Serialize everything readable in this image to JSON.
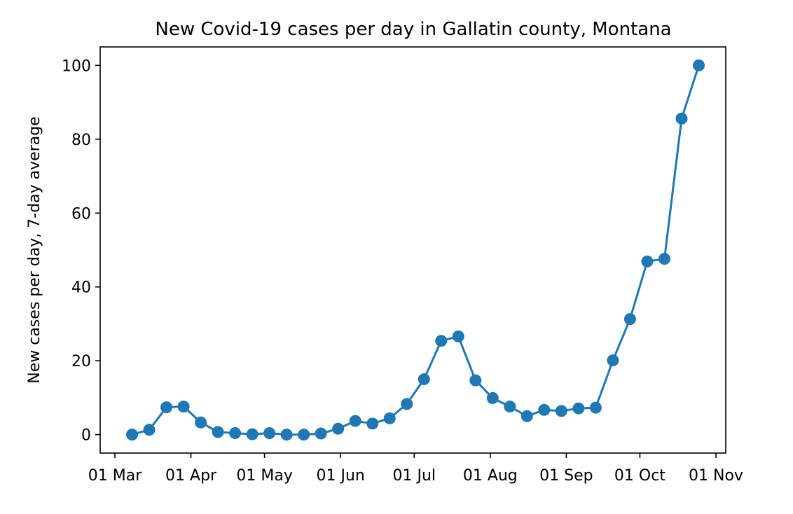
{
  "chart_data": {
    "type": "line",
    "title": "New Covid-19 cases per day in Gallatin county, Montana",
    "xlabel": "",
    "ylabel": "New cases per day, 7-day average",
    "x_ticks": [
      {
        "date": "2020-03-01",
        "label": "01 Mar"
      },
      {
        "date": "2020-04-01",
        "label": "01 Apr"
      },
      {
        "date": "2020-05-01",
        "label": "01 May"
      },
      {
        "date": "2020-06-01",
        "label": "01 Jun"
      },
      {
        "date": "2020-07-01",
        "label": "01 Jul"
      },
      {
        "date": "2020-08-01",
        "label": "01 Aug"
      },
      {
        "date": "2020-09-01",
        "label": "01 Sep"
      },
      {
        "date": "2020-10-01",
        "label": "01 Oct"
      },
      {
        "date": "2020-11-01",
        "label": "01 Nov"
      }
    ],
    "y_ticks": [
      0,
      20,
      40,
      60,
      80,
      100
    ],
    "xlim": [
      "2020-02-24",
      "2020-11-05"
    ],
    "ylim": [
      -5,
      105
    ],
    "grid": false,
    "color": "#1f77b4",
    "series": [
      {
        "points": [
          {
            "x": "2020-03-08",
            "y": 0.0
          },
          {
            "x": "2020-03-15",
            "y": 1.3
          },
          {
            "x": "2020-03-22",
            "y": 7.4
          },
          {
            "x": "2020-03-29",
            "y": 7.6
          },
          {
            "x": "2020-04-05",
            "y": 3.3
          },
          {
            "x": "2020-04-12",
            "y": 0.7
          },
          {
            "x": "2020-04-19",
            "y": 0.4
          },
          {
            "x": "2020-04-26",
            "y": 0.1
          },
          {
            "x": "2020-05-03",
            "y": 0.4
          },
          {
            "x": "2020-05-10",
            "y": 0.0
          },
          {
            "x": "2020-05-17",
            "y": 0.0
          },
          {
            "x": "2020-05-24",
            "y": 0.3
          },
          {
            "x": "2020-05-31",
            "y": 1.6
          },
          {
            "x": "2020-06-07",
            "y": 3.7
          },
          {
            "x": "2020-06-14",
            "y": 3.0
          },
          {
            "x": "2020-06-21",
            "y": 4.4
          },
          {
            "x": "2020-06-28",
            "y": 8.3
          },
          {
            "x": "2020-07-05",
            "y": 15.0
          },
          {
            "x": "2020-07-12",
            "y": 25.4
          },
          {
            "x": "2020-07-19",
            "y": 26.6
          },
          {
            "x": "2020-07-26",
            "y": 14.7
          },
          {
            "x": "2020-08-02",
            "y": 9.9
          },
          {
            "x": "2020-08-09",
            "y": 7.6
          },
          {
            "x": "2020-08-16",
            "y": 5.0
          },
          {
            "x": "2020-08-23",
            "y": 6.7
          },
          {
            "x": "2020-08-30",
            "y": 6.4
          },
          {
            "x": "2020-09-06",
            "y": 7.1
          },
          {
            "x": "2020-09-13",
            "y": 7.3
          },
          {
            "x": "2020-09-20",
            "y": 20.1
          },
          {
            "x": "2020-09-27",
            "y": 31.3
          },
          {
            "x": "2020-10-04",
            "y": 46.9
          },
          {
            "x": "2020-10-11",
            "y": 47.6
          },
          {
            "x": "2020-10-18",
            "y": 85.6
          },
          {
            "x": "2020-10-25",
            "y": 100.0
          }
        ]
      }
    ]
  }
}
